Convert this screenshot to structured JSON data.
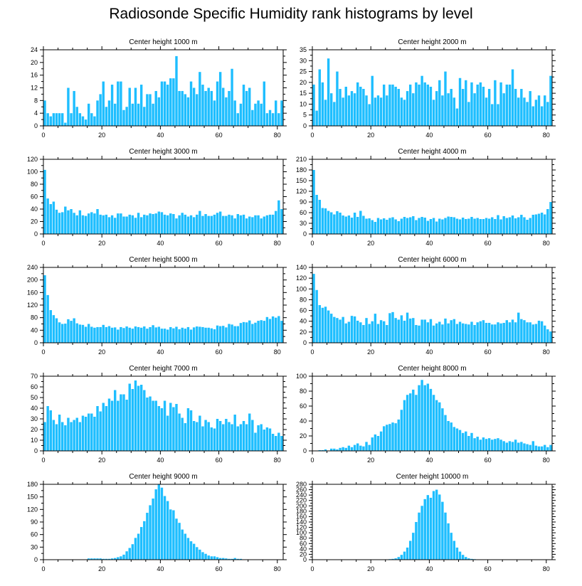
{
  "title": "Radiosonde Specific Humidity rank histograms by level",
  "chart_data": [
    {
      "type": "bar",
      "title": "Center height 1000 m",
      "xlim": [
        0,
        82
      ],
      "xticks": [
        0,
        20,
        40,
        60,
        80
      ],
      "ylim": [
        0,
        24
      ],
      "yticks": [
        0,
        4,
        8,
        12,
        16,
        20,
        24
      ],
      "color": "#1ebeff",
      "values": [
        8,
        4,
        3,
        4,
        4,
        4,
        4,
        1,
        12,
        4,
        11,
        6,
        4,
        3,
        2,
        7,
        4,
        3,
        8,
        10,
        14,
        6,
        8,
        13,
        7,
        14,
        14,
        5,
        6,
        12,
        7,
        12,
        7,
        13,
        6,
        10,
        10,
        7,
        11,
        9,
        14,
        14,
        13,
        15,
        15,
        22,
        11,
        11,
        10,
        9,
        14,
        12,
        10,
        17,
        13,
        11,
        12,
        11,
        8,
        14,
        17,
        12,
        9,
        11,
        18,
        8,
        4,
        7,
        13,
        11,
        12,
        5,
        7,
        8,
        7,
        14,
        4,
        5,
        4,
        8,
        4,
        8
      ]
    },
    {
      "type": "bar",
      "title": "Center height 2000 m",
      "xlim": [
        0,
        82
      ],
      "xticks": [
        0,
        20,
        40,
        60,
        80
      ],
      "ylim": [
        0,
        35
      ],
      "yticks": [
        0,
        5,
        10,
        15,
        20,
        25,
        30,
        35
      ],
      "color": "#1ebeff",
      "values": [
        19,
        7,
        26,
        20,
        12,
        31,
        15,
        11,
        25,
        17,
        13,
        18,
        14,
        16,
        15,
        20,
        18,
        17,
        14,
        10,
        23,
        13,
        14,
        13,
        19,
        14,
        19,
        19,
        18,
        17,
        13,
        12,
        16,
        19,
        15,
        20,
        19,
        23,
        20,
        19,
        18,
        12,
        16,
        21,
        14,
        25,
        15,
        17,
        13,
        8,
        22,
        17,
        21,
        11,
        20,
        15,
        19,
        20,
        18,
        13,
        17,
        10,
        21,
        10,
        20,
        15,
        19,
        19,
        26,
        17,
        13,
        17,
        13,
        11,
        16,
        9,
        12,
        14,
        9,
        14,
        11,
        23
      ]
    },
    {
      "type": "bar",
      "title": "Center height 3000 m",
      "xlim": [
        0,
        82
      ],
      "xticks": [
        0,
        20,
        40,
        60,
        80
      ],
      "ylim": [
        0,
        120
      ],
      "yticks": [
        0,
        20,
        40,
        60,
        80,
        100,
        120
      ],
      "color": "#1ebeff",
      "values": [
        103,
        57,
        48,
        52,
        39,
        34,
        35,
        44,
        38,
        40,
        34,
        30,
        38,
        30,
        29,
        33,
        35,
        33,
        40,
        31,
        30,
        31,
        27,
        30,
        26,
        33,
        33,
        28,
        28,
        31,
        30,
        26,
        34,
        27,
        31,
        30,
        33,
        32,
        33,
        36,
        35,
        31,
        30,
        33,
        32,
        25,
        30,
        34,
        31,
        28,
        30,
        27,
        31,
        37,
        29,
        32,
        29,
        29,
        31,
        34,
        36,
        29,
        29,
        31,
        30,
        25,
        32,
        30,
        31,
        25,
        28,
        27,
        30,
        30,
        25,
        28,
        30,
        31,
        31,
        37,
        54,
        40
      ]
    },
    {
      "type": "bar",
      "title": "Center height 4000 m",
      "xlim": [
        0,
        82
      ],
      "xticks": [
        0,
        20,
        40,
        60,
        80
      ],
      "ylim": [
        0,
        210
      ],
      "yticks": [
        0,
        30,
        60,
        90,
        120,
        150,
        180,
        210
      ],
      "color": "#1ebeff",
      "values": [
        180,
        110,
        96,
        73,
        72,
        65,
        61,
        55,
        64,
        60,
        52,
        49,
        52,
        46,
        60,
        48,
        65,
        51,
        43,
        44,
        39,
        34,
        45,
        41,
        44,
        40,
        45,
        47,
        41,
        36,
        43,
        48,
        45,
        47,
        50,
        39,
        45,
        48,
        46,
        37,
        42,
        45,
        35,
        43,
        41,
        45,
        49,
        48,
        47,
        43,
        41,
        46,
        42,
        43,
        48,
        43,
        45,
        42,
        42,
        45,
        43,
        47,
        42,
        53,
        41,
        50,
        45,
        47,
        52,
        44,
        47,
        54,
        47,
        40,
        45,
        54,
        55,
        57,
        60,
        55,
        70,
        90
      ]
    },
    {
      "type": "bar",
      "title": "Center height 5000 m",
      "xlim": [
        0,
        82
      ],
      "xticks": [
        0,
        20,
        40,
        60,
        80
      ],
      "ylim": [
        0,
        240
      ],
      "yticks": [
        0,
        40,
        80,
        120,
        160,
        200,
        240
      ],
      "color": "#1ebeff",
      "values": [
        215,
        152,
        104,
        88,
        78,
        65,
        60,
        61,
        75,
        70,
        78,
        62,
        58,
        57,
        51,
        60,
        51,
        48,
        50,
        50,
        57,
        50,
        53,
        48,
        49,
        42,
        50,
        47,
        52,
        48,
        45,
        52,
        50,
        48,
        52,
        45,
        50,
        56,
        49,
        51,
        45,
        45,
        42,
        50,
        46,
        51,
        43,
        48,
        45,
        50,
        42,
        49,
        52,
        51,
        50,
        48,
        48,
        46,
        43,
        55,
        53,
        54,
        49,
        60,
        58,
        53,
        53,
        63,
        66,
        65,
        71,
        60,
        64,
        70,
        72,
        70,
        82,
        76,
        84,
        80,
        85,
        70
      ]
    },
    {
      "type": "bar",
      "title": "Center height 6000 m",
      "xlim": [
        0,
        82
      ],
      "xticks": [
        0,
        20,
        40,
        60,
        80
      ],
      "ylim": [
        0,
        140
      ],
      "yticks": [
        0,
        20,
        40,
        60,
        80,
        100,
        120,
        140
      ],
      "color": "#1ebeff",
      "values": [
        128,
        98,
        70,
        65,
        67,
        60,
        54,
        48,
        46,
        43,
        48,
        36,
        39,
        50,
        49,
        41,
        38,
        33,
        46,
        35,
        40,
        54,
        35,
        42,
        40,
        33,
        55,
        57,
        46,
        43,
        51,
        41,
        56,
        45,
        46,
        33,
        32,
        43,
        43,
        38,
        44,
        32,
        36,
        39,
        34,
        45,
        36,
        42,
        44,
        35,
        39,
        36,
        35,
        34,
        39,
        33,
        38,
        40,
        42,
        37,
        37,
        34,
        34,
        38,
        36,
        37,
        42,
        38,
        43,
        38,
        56,
        44,
        42,
        38,
        38,
        34,
        35,
        41,
        40,
        32,
        25,
        21
      ]
    },
    {
      "type": "bar",
      "title": "Center height 7000 m",
      "xlim": [
        0,
        82
      ],
      "xticks": [
        0,
        20,
        40,
        60,
        80
      ],
      "ylim": [
        0,
        70
      ],
      "yticks": [
        0,
        10,
        20,
        30,
        40,
        50,
        60,
        70
      ],
      "color": "#1ebeff",
      "values": [
        27,
        42,
        38,
        29,
        25,
        34,
        27,
        24,
        31,
        27,
        29,
        31,
        27,
        33,
        32,
        35,
        35,
        32,
        42,
        37,
        45,
        42,
        49,
        47,
        57,
        47,
        53,
        53,
        48,
        63,
        58,
        66,
        61,
        62,
        57,
        50,
        51,
        47,
        47,
        42,
        40,
        47,
        33,
        45,
        41,
        44,
        35,
        31,
        26,
        40,
        38,
        28,
        27,
        33,
        23,
        29,
        27,
        22,
        21,
        30,
        28,
        25,
        30,
        27,
        25,
        34,
        23,
        25,
        28,
        25,
        35,
        29,
        17,
        24,
        25,
        20,
        22,
        21,
        16,
        14,
        17,
        14
      ]
    },
    {
      "type": "bar",
      "title": "Center height 8000 m",
      "xlim": [
        0,
        82
      ],
      "xticks": [
        0,
        20,
        40,
        60,
        80
      ],
      "ylim": [
        0,
        100
      ],
      "yticks": [
        0,
        20,
        40,
        60,
        80,
        100
      ],
      "color": "#1ebeff",
      "values": [
        0,
        0,
        1,
        1,
        2,
        0,
        3,
        3,
        2,
        4,
        5,
        4,
        7,
        5,
        8,
        10,
        7,
        6,
        12,
        8,
        18,
        22,
        20,
        26,
        33,
        35,
        36,
        38,
        37,
        42,
        55,
        68,
        75,
        77,
        82,
        75,
        88,
        95,
        88,
        90,
        83,
        75,
        68,
        65,
        57,
        48,
        40,
        38,
        32,
        30,
        28,
        24,
        26,
        20,
        24,
        17,
        19,
        15,
        18,
        16,
        17,
        15,
        16,
        17,
        15,
        13,
        11,
        13,
        12,
        15,
        11,
        12,
        10,
        9,
        8,
        13,
        7,
        6,
        6,
        8,
        5,
        8
      ]
    },
    {
      "type": "bar",
      "title": "Center height 9000 m",
      "xlim": [
        0,
        82
      ],
      "xticks": [
        0,
        20,
        40,
        60,
        80
      ],
      "ylim": [
        0,
        180
      ],
      "yticks": [
        0,
        30,
        60,
        90,
        120,
        150,
        180
      ],
      "color": "#1ebeff",
      "values": [
        0,
        0,
        0,
        0,
        0,
        0,
        0,
        0,
        0,
        0,
        0,
        0,
        0,
        0,
        0,
        3,
        3,
        3,
        3,
        3,
        2,
        2,
        2,
        3,
        4,
        6,
        8,
        12,
        20,
        28,
        37,
        52,
        62,
        78,
        92,
        112,
        130,
        146,
        168,
        180,
        172,
        152,
        140,
        120,
        118,
        98,
        88,
        72,
        62,
        52,
        44,
        38,
        30,
        24,
        18,
        14,
        10,
        8,
        8,
        6,
        4,
        4,
        3,
        2,
        2,
        4,
        2,
        2,
        0,
        0,
        0,
        0,
        0,
        0,
        0,
        0,
        0,
        0,
        0,
        0,
        0,
        0
      ]
    },
    {
      "type": "bar",
      "title": "Center height 10000 m",
      "xlim": [
        0,
        82
      ],
      "xticks": [
        0,
        20,
        40,
        60,
        80
      ],
      "ylim": [
        0,
        280
      ],
      "yticks": [
        0,
        20,
        40,
        60,
        80,
        100,
        120,
        140,
        160,
        180,
        200,
        220,
        240,
        260,
        280
      ],
      "color": "#1ebeff",
      "values": [
        0,
        0,
        0,
        0,
        0,
        0,
        0,
        0,
        0,
        0,
        0,
        0,
        0,
        0,
        0,
        0,
        0,
        0,
        0,
        0,
        0,
        0,
        0,
        0,
        0,
        0,
        2,
        3,
        5,
        10,
        18,
        30,
        45,
        70,
        100,
        140,
        175,
        200,
        225,
        240,
        230,
        255,
        260,
        242,
        215,
        175,
        135,
        100,
        70,
        45,
        30,
        18,
        10,
        5,
        3,
        2,
        1,
        0,
        0,
        0,
        0,
        0,
        0,
        0,
        0,
        0,
        0,
        0,
        0,
        0,
        0,
        0,
        0,
        0,
        0,
        0,
        0,
        0,
        0,
        0,
        0,
        0
      ]
    }
  ]
}
